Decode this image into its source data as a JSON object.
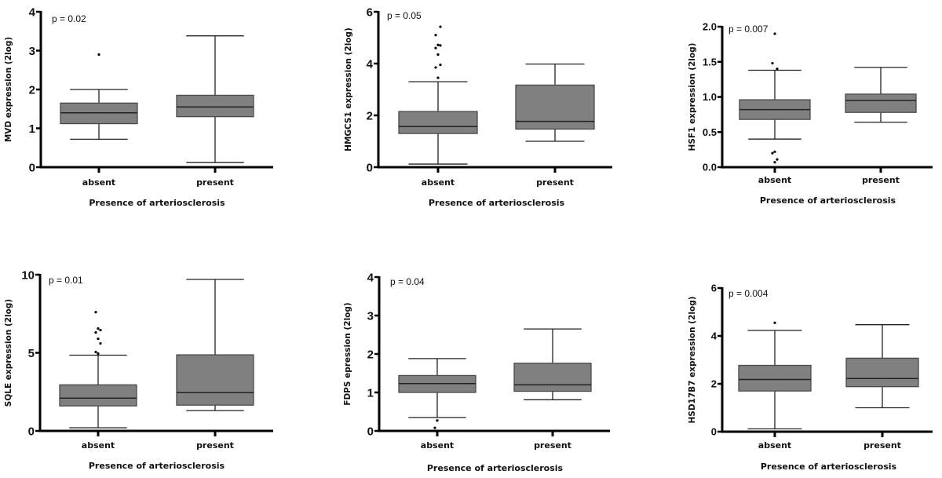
{
  "chart_data": [
    {
      "type": "box",
      "ylabel": "MVD expression (2log)",
      "xlabel": "Presence of arteriosclerosis",
      "annotation": "p = 0.02",
      "ylim": [
        0,
        4
      ],
      "yticks": [
        0,
        1,
        2,
        3,
        4
      ],
      "ytick_labels": [
        "0",
        "1",
        "2",
        "3",
        "4"
      ],
      "categories": [
        "absent",
        "present"
      ],
      "series": [
        {
          "name": "absent",
          "whisker_low": 0.72,
          "q1": 1.12,
          "median": 1.4,
          "q3": 1.65,
          "whisker_high": 2.0,
          "outliers": [
            2.9
          ]
        },
        {
          "name": "present",
          "whisker_low": 0.12,
          "q1": 1.3,
          "median": 1.55,
          "q3": 1.85,
          "whisker_high": 3.38,
          "outliers": []
        }
      ]
    },
    {
      "type": "box",
      "ylabel": "HMGCS1 expression (2log)",
      "xlabel": "Presence of arteriosclerosis",
      "annotation": "p = 0.05",
      "ylim": [
        0,
        6
      ],
      "yticks": [
        0,
        2,
        4,
        6
      ],
      "ytick_labels": [
        "0",
        "2",
        "4",
        "6"
      ],
      "categories": [
        "absent",
        "present"
      ],
      "series": [
        {
          "name": "absent",
          "whisker_low": 0.12,
          "q1": 1.3,
          "median": 1.57,
          "q3": 2.15,
          "whisker_high": 3.3,
          "outliers": [
            3.45,
            3.85,
            3.95,
            4.35,
            4.6,
            4.7,
            4.72,
            5.1,
            5.42
          ]
        },
        {
          "name": "present",
          "whisker_low": 1.0,
          "q1": 1.47,
          "median": 1.77,
          "q3": 3.17,
          "whisker_high": 3.98,
          "outliers": []
        }
      ]
    },
    {
      "type": "box",
      "ylabel": "HSF1 expression (2log)",
      "xlabel": "Presence of arteriosclerosis",
      "annotation": "p = 0.007",
      "ylim": [
        0,
        2
      ],
      "yticks": [
        0,
        0.5,
        1,
        1.5,
        2
      ],
      "ytick_labels": [
        "0.0",
        "0.5",
        "1.0",
        "1.5",
        "2.0"
      ],
      "categories": [
        "absent",
        "present"
      ],
      "series": [
        {
          "name": "absent",
          "whisker_low": 0.4,
          "q1": 0.68,
          "median": 0.82,
          "q3": 0.96,
          "whisker_high": 1.38,
          "outliers": [
            1.9,
            1.48,
            1.4,
            0.22,
            0.2,
            0.11,
            0.07
          ]
        },
        {
          "name": "present",
          "whisker_low": 0.64,
          "q1": 0.78,
          "median": 0.95,
          "q3": 1.04,
          "whisker_high": 1.42,
          "outliers": []
        }
      ]
    },
    {
      "type": "box",
      "ylabel": "SQLE expression (2log)",
      "xlabel": "Presence of arteriosclerosis",
      "annotation": "p = 0.01",
      "ylim": [
        0,
        10
      ],
      "yticks": [
        0,
        5,
        10
      ],
      "ytick_labels": [
        "0",
        "5",
        "10"
      ],
      "categories": [
        "absent",
        "present"
      ],
      "series": [
        {
          "name": "absent",
          "whisker_low": 0.2,
          "q1": 1.6,
          "median": 2.1,
          "q3": 2.95,
          "whisker_high": 4.85,
          "outliers": [
            4.95,
            5.05,
            5.6,
            5.9,
            6.3,
            6.45,
            6.55,
            7.6
          ]
        },
        {
          "name": "present",
          "whisker_low": 1.3,
          "q1": 1.65,
          "median": 2.45,
          "q3": 4.87,
          "whisker_high": 9.7,
          "outliers": []
        }
      ]
    },
    {
      "type": "box",
      "ylabel": "FDPS epression (2log)",
      "xlabel": "Presence of arteriosclerosis",
      "annotation": "p = 0.04",
      "ylim": [
        0,
        4
      ],
      "yticks": [
        0,
        1,
        2,
        3,
        4
      ],
      "ytick_labels": [
        "0",
        "1",
        "2",
        "3",
        "4"
      ],
      "categories": [
        "absent",
        "present"
      ],
      "series": [
        {
          "name": "absent",
          "whisker_low": 0.35,
          "q1": 1.0,
          "median": 1.23,
          "q3": 1.44,
          "whisker_high": 1.88,
          "outliers": [
            0.27,
            0.08
          ]
        },
        {
          "name": "present",
          "whisker_low": 0.81,
          "q1": 1.03,
          "median": 1.2,
          "q3": 1.76,
          "whisker_high": 2.65,
          "outliers": []
        }
      ]
    },
    {
      "type": "box",
      "ylabel": "HSD17B7 expression (2log)",
      "xlabel": "Presence of arteriosclerosis",
      "annotation": "p = 0.004",
      "ylim": [
        0,
        6
      ],
      "yticks": [
        0,
        2,
        4,
        6
      ],
      "ytick_labels": [
        "0",
        "2",
        "4",
        "6"
      ],
      "categories": [
        "absent",
        "present"
      ],
      "series": [
        {
          "name": "absent",
          "whisker_low": 0.12,
          "q1": 1.7,
          "median": 2.18,
          "q3": 2.77,
          "whisker_high": 4.23,
          "outliers": [
            4.55
          ]
        },
        {
          "name": "present",
          "whisker_low": 1.0,
          "q1": 1.88,
          "median": 2.22,
          "q3": 3.07,
          "whisker_high": 4.47,
          "outliers": []
        }
      ]
    }
  ],
  "colors": {
    "box_fill": "#808080",
    "box_stroke": "#4a4a4a",
    "axis": "#000000"
  }
}
